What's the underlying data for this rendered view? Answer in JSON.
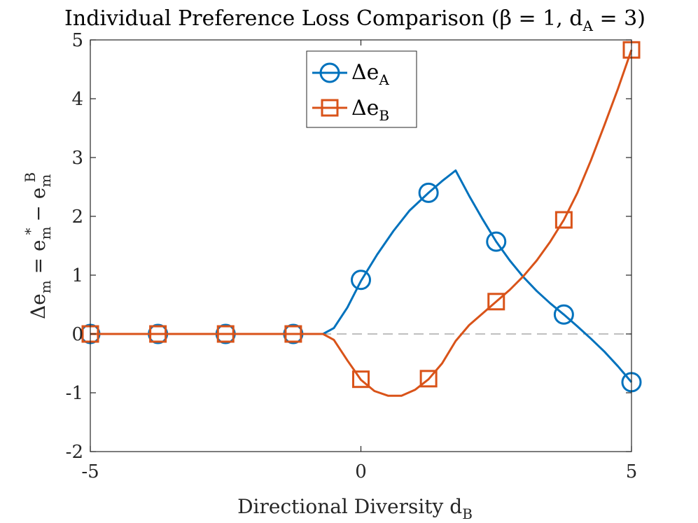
{
  "chart_data": {
    "type": "line",
    "title": "Individual Preference Loss Comparison (β = 1, d",
    "title_sub": "A",
    "title_suffix": " = 3)",
    "xlabel": "Directional Diversity d",
    "xlabel_sub": "B",
    "ylabel": "Δe",
    "ylabel_m": "m",
    "ylabel_eq": " = e",
    "ylabel_star": "*",
    "ylabel_minus": " − e",
    "ylabel_sup": "B",
    "xlim": [
      -5,
      5
    ],
    "ylim": [
      -2,
      5
    ],
    "xticks": [
      "-5",
      "0",
      "5"
    ],
    "xtick_values": [
      -5,
      0,
      5
    ],
    "yticks": [
      "-2",
      "-1",
      "0",
      "1",
      "2",
      "3",
      "4",
      "5"
    ],
    "ytick_values": [
      -2,
      -1,
      0,
      1,
      2,
      3,
      4,
      5
    ],
    "grid": false,
    "legend_position": "top-center",
    "reference_line": {
      "y": 0,
      "style": "dashed",
      "color": "#aaaaaa"
    },
    "series": [
      {
        "name": "Δe",
        "name_sub": "A",
        "color": "#0072BD",
        "marker": "circle",
        "line": [
          [
            -5,
            0
          ],
          [
            -4,
            0
          ],
          [
            -3,
            0
          ],
          [
            -2,
            0
          ],
          [
            -1,
            0
          ],
          [
            -0.7,
            0
          ],
          [
            -0.5,
            0.1
          ],
          [
            -0.25,
            0.45
          ],
          [
            0,
            0.9
          ],
          [
            0.3,
            1.35
          ],
          [
            0.6,
            1.75
          ],
          [
            0.9,
            2.1
          ],
          [
            1.25,
            2.4
          ],
          [
            1.5,
            2.6
          ],
          [
            1.75,
            2.78
          ],
          [
            2.0,
            2.35
          ],
          [
            2.25,
            1.95
          ],
          [
            2.5,
            1.57
          ],
          [
            2.75,
            1.25
          ],
          [
            3.0,
            0.97
          ],
          [
            3.25,
            0.73
          ],
          [
            3.5,
            0.52
          ],
          [
            3.75,
            0.33
          ],
          [
            4.0,
            0.13
          ],
          [
            4.25,
            -0.08
          ],
          [
            4.5,
            -0.3
          ],
          [
            4.75,
            -0.55
          ],
          [
            5.0,
            -0.82
          ]
        ],
        "markers": [
          [
            -5,
            0
          ],
          [
            -3.75,
            0
          ],
          [
            -2.5,
            0
          ],
          [
            -1.25,
            0
          ],
          [
            0,
            0.92
          ],
          [
            1.25,
            2.4
          ],
          [
            2.5,
            1.57
          ],
          [
            3.75,
            0.33
          ],
          [
            5,
            -0.82
          ]
        ]
      },
      {
        "name": "Δe",
        "name_sub": "B",
        "color": "#D95319",
        "marker": "square",
        "line": [
          [
            -5,
            0
          ],
          [
            -4,
            0
          ],
          [
            -3,
            0
          ],
          [
            -2,
            0
          ],
          [
            -1,
            0
          ],
          [
            -0.7,
            0
          ],
          [
            -0.5,
            -0.1
          ],
          [
            -0.25,
            -0.45
          ],
          [
            0,
            -0.78
          ],
          [
            0.25,
            -0.97
          ],
          [
            0.5,
            -1.05
          ],
          [
            0.75,
            -1.05
          ],
          [
            1.0,
            -0.95
          ],
          [
            1.25,
            -0.77
          ],
          [
            1.5,
            -0.5
          ],
          [
            1.75,
            -0.12
          ],
          [
            2.0,
            0.15
          ],
          [
            2.25,
            0.35
          ],
          [
            2.5,
            0.55
          ],
          [
            2.75,
            0.75
          ],
          [
            3.0,
            0.98
          ],
          [
            3.25,
            1.25
          ],
          [
            3.5,
            1.57
          ],
          [
            3.75,
            1.94
          ],
          [
            4.0,
            2.4
          ],
          [
            4.25,
            2.95
          ],
          [
            4.5,
            3.55
          ],
          [
            4.75,
            4.17
          ],
          [
            5.0,
            4.83
          ]
        ],
        "markers": [
          [
            -5,
            0
          ],
          [
            -3.75,
            0
          ],
          [
            -2.5,
            0
          ],
          [
            -1.25,
            0
          ],
          [
            0,
            -0.77
          ],
          [
            1.25,
            -0.76
          ],
          [
            2.5,
            0.55
          ],
          [
            3.75,
            1.94
          ],
          [
            5,
            4.83
          ]
        ]
      }
    ]
  }
}
